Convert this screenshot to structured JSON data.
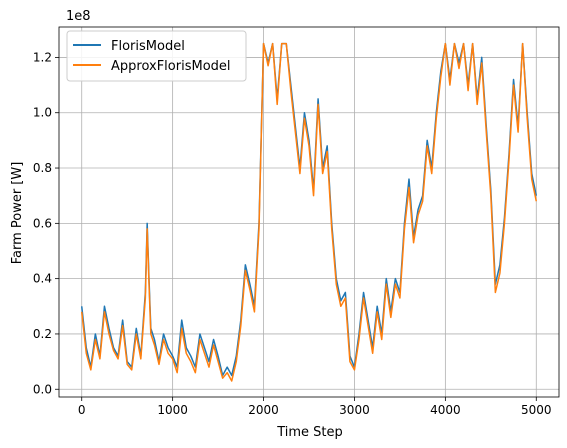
{
  "chart_data": {
    "type": "line",
    "xlabel": "Time Step",
    "ylabel": "Farm Power [W]",
    "y_offset_label": "1e8",
    "xlim": [
      -250,
      5250
    ],
    "ylim": [
      -2800000,
      131000000
    ],
    "x_ticks": [
      0,
      1000,
      2000,
      3000,
      4000,
      5000
    ],
    "x_tick_labels": [
      "0",
      "1000",
      "2000",
      "3000",
      "4000",
      "5000"
    ],
    "y_ticks": [
      0,
      20000000,
      40000000,
      60000000,
      80000000,
      100000000,
      120000000
    ],
    "y_tick_labels": [
      "0.0",
      "0.2",
      "0.4",
      "0.6",
      "0.8",
      "1.0",
      "1.2"
    ],
    "grid": true,
    "legend_position": "upper-left",
    "series": [
      {
        "name": "FlorisModel",
        "color": "#1f77b4",
        "x": [
          0,
          50,
          100,
          150,
          200,
          250,
          300,
          350,
          400,
          450,
          500,
          550,
          600,
          650,
          700,
          720,
          740,
          760,
          800,
          850,
          900,
          950,
          1000,
          1050,
          1100,
          1150,
          1200,
          1250,
          1300,
          1350,
          1400,
          1450,
          1500,
          1550,
          1600,
          1650,
          1700,
          1750,
          1800,
          1850,
          1900,
          1950,
          2000,
          2050,
          2100,
          2150,
          2200,
          2250,
          2300,
          2350,
          2400,
          2450,
          2500,
          2550,
          2600,
          2650,
          2700,
          2750,
          2800,
          2850,
          2900,
          2950,
          3000,
          3050,
          3100,
          3150,
          3200,
          3250,
          3300,
          3350,
          3400,
          3450,
          3500,
          3550,
          3600,
          3650,
          3700,
          3750,
          3800,
          3850,
          3900,
          3950,
          4000,
          4050,
          4100,
          4150,
          4200,
          4250,
          4300,
          4350,
          4400,
          4450,
          4500,
          4550,
          4600,
          4650,
          4700,
          4750,
          4800,
          4850,
          4900,
          4950,
          5000
        ],
        "y": [
          30000000,
          15000000,
          8000000,
          20000000,
          12000000,
          30000000,
          22000000,
          15000000,
          12000000,
          25000000,
          10000000,
          8000000,
          22000000,
          12000000,
          35000000,
          60000000,
          40000000,
          22000000,
          18000000,
          10000000,
          20000000,
          15000000,
          12000000,
          8000000,
          25000000,
          15000000,
          12000000,
          8000000,
          20000000,
          15000000,
          10000000,
          18000000,
          12000000,
          5000000,
          8000000,
          5000000,
          12000000,
          25000000,
          45000000,
          38000000,
          30000000,
          60000000,
          125000000,
          118000000,
          125000000,
          105000000,
          125000000,
          125000000,
          110000000,
          95000000,
          80000000,
          100000000,
          90000000,
          72000000,
          105000000,
          80000000,
          88000000,
          60000000,
          40000000,
          32000000,
          35000000,
          12000000,
          8000000,
          20000000,
          35000000,
          25000000,
          15000000,
          30000000,
          20000000,
          40000000,
          28000000,
          40000000,
          35000000,
          60000000,
          76000000,
          55000000,
          65000000,
          70000000,
          90000000,
          80000000,
          100000000,
          115000000,
          125000000,
          112000000,
          125000000,
          118000000,
          125000000,
          110000000,
          125000000,
          105000000,
          120000000,
          95000000,
          72000000,
          38000000,
          45000000,
          62000000,
          85000000,
          112000000,
          95000000,
          125000000,
          100000000,
          78000000,
          70000000
        ]
      },
      {
        "name": "ApproxFlorisModel",
        "color": "#ff7f0e",
        "x": [
          0,
          50,
          100,
          150,
          200,
          250,
          300,
          350,
          400,
          450,
          500,
          550,
          600,
          650,
          700,
          720,
          740,
          760,
          800,
          850,
          900,
          950,
          1000,
          1050,
          1100,
          1150,
          1200,
          1250,
          1300,
          1350,
          1400,
          1450,
          1500,
          1550,
          1600,
          1650,
          1700,
          1750,
          1800,
          1850,
          1900,
          1950,
          2000,
          2050,
          2100,
          2150,
          2200,
          2250,
          2300,
          2350,
          2400,
          2450,
          2500,
          2550,
          2600,
          2650,
          2700,
          2750,
          2800,
          2850,
          2900,
          2950,
          3000,
          3050,
          3100,
          3150,
          3200,
          3250,
          3300,
          3350,
          3400,
          3450,
          3500,
          3550,
          3600,
          3650,
          3700,
          3750,
          3800,
          3850,
          3900,
          3950,
          4000,
          4050,
          4100,
          4150,
          4200,
          4250,
          4300,
          4350,
          4400,
          4450,
          4500,
          4550,
          4600,
          4650,
          4700,
          4750,
          4800,
          4850,
          4900,
          4950,
          5000
        ],
        "y": [
          28000000,
          13000000,
          7000000,
          18000000,
          11000000,
          28000000,
          20000000,
          14000000,
          11000000,
          23000000,
          9000000,
          7000000,
          20000000,
          11000000,
          33000000,
          58000000,
          38000000,
          20000000,
          16000000,
          9000000,
          18000000,
          13000000,
          11000000,
          6000000,
          22000000,
          13000000,
          10000000,
          6000000,
          18000000,
          13000000,
          8000000,
          16000000,
          10000000,
          4000000,
          6000000,
          3000000,
          10000000,
          23000000,
          43000000,
          36000000,
          28000000,
          58000000,
          125000000,
          117000000,
          125000000,
          103000000,
          125000000,
          125000000,
          108000000,
          93000000,
          78000000,
          98000000,
          88000000,
          70000000,
          103000000,
          78000000,
          86000000,
          58000000,
          38000000,
          30000000,
          33000000,
          10000000,
          7000000,
          18000000,
          33000000,
          23000000,
          13000000,
          28000000,
          18000000,
          38000000,
          26000000,
          38000000,
          33000000,
          58000000,
          73000000,
          53000000,
          63000000,
          68000000,
          88000000,
          78000000,
          98000000,
          113000000,
          125000000,
          110000000,
          125000000,
          116000000,
          125000000,
          108000000,
          125000000,
          103000000,
          118000000,
          93000000,
          70000000,
          35000000,
          42000000,
          60000000,
          83000000,
          110000000,
          93000000,
          125000000,
          98000000,
          76000000,
          68000000
        ]
      }
    ]
  }
}
